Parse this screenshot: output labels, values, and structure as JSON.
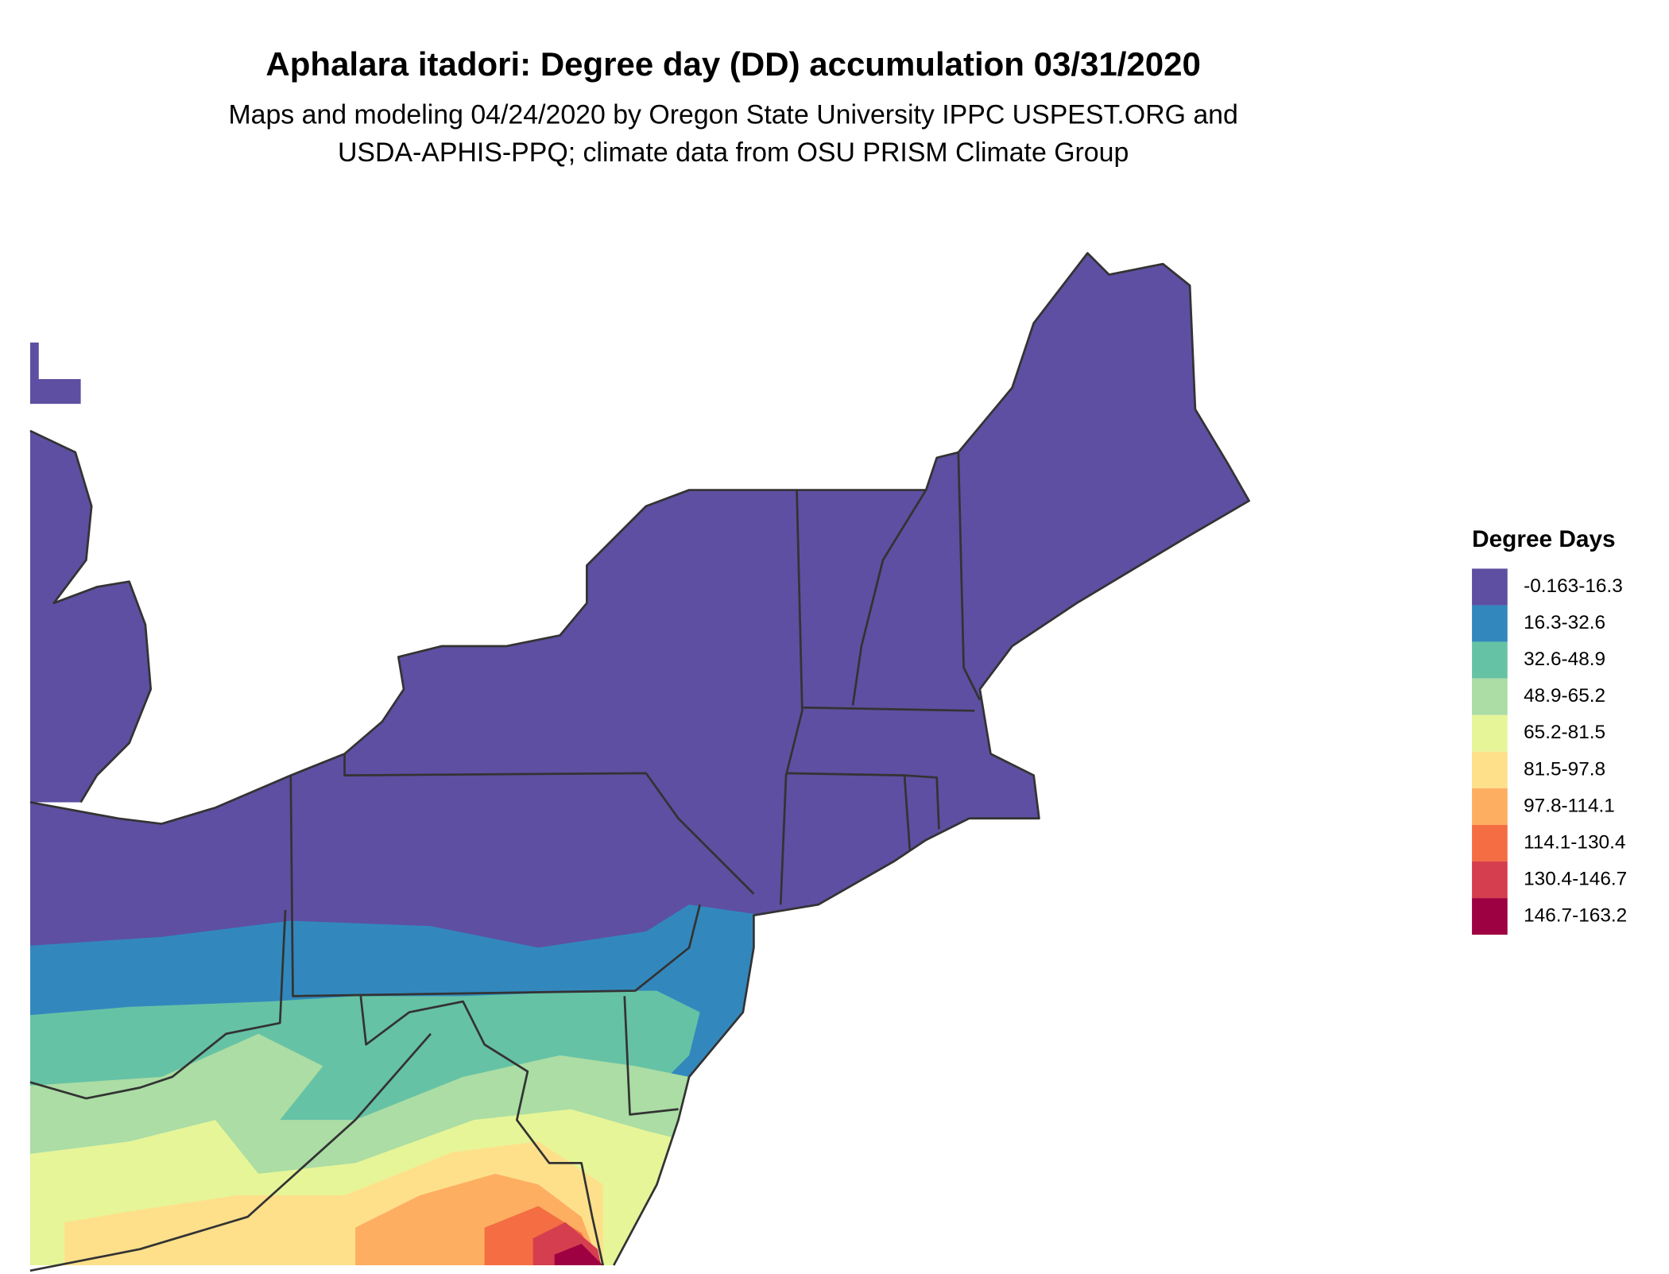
{
  "title": "Aphalara itadori: Degree day (DD) accumulation 03/31/2020",
  "subtitle": [
    "Maps and modeling 04/24/2020 by Oregon State University IPPC USPEST.ORG and",
    "USDA-APHIS-PPQ; climate data from OSU PRISM Climate Group"
  ],
  "legend": {
    "title": "Degree Days",
    "items": [
      {
        "label": "-0.163-16.3",
        "color": "#5e4fa2"
      },
      {
        "label": "16.3-32.6",
        "color": "#3288bd"
      },
      {
        "label": "32.6-48.9",
        "color": "#66c2a5"
      },
      {
        "label": "48.9-65.2",
        "color": "#abdda4"
      },
      {
        "label": "65.2-81.5",
        "color": "#e6f598"
      },
      {
        "label": "81.5-97.8",
        "color": "#fee08b"
      },
      {
        "label": "97.8-114.1",
        "color": "#fdae61"
      },
      {
        "label": "114.1-130.4",
        "color": "#f46d43"
      },
      {
        "label": "130.4-146.7",
        "color": "#d53e4f"
      },
      {
        "label": "146.7-163.2",
        "color": "#9e0142"
      }
    ]
  }
}
